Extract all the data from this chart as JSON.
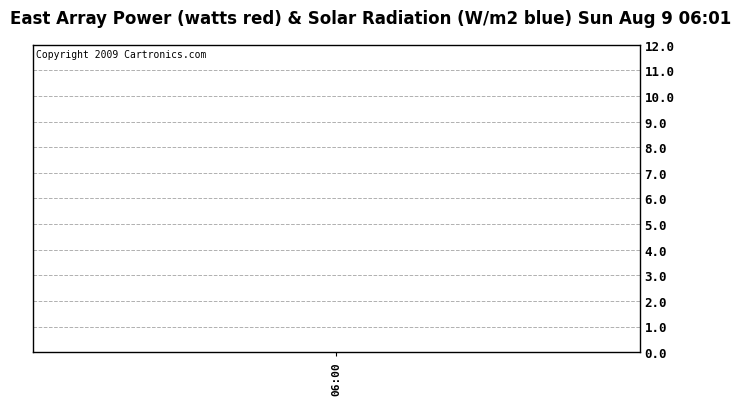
{
  "title": "East Array Power (watts red) & Solar Radiation (W/m2 blue) Sun Aug 9 06:01",
  "copyright_text": "Copyright 2009 Cartronics.com",
  "xlim": [
    0,
    1
  ],
  "ylim": [
    0.0,
    12.0
  ],
  "yticks": [
    0.0,
    1.0,
    2.0,
    3.0,
    4.0,
    5.0,
    6.0,
    7.0,
    8.0,
    9.0,
    10.0,
    11.0,
    12.0
  ],
  "ytick_labels": [
    "0.0",
    "1.0",
    "2.0",
    "3.0",
    "4.0",
    "5.0",
    "6.0",
    "7.0",
    "8.0",
    "9.0",
    "10.0",
    "11.0",
    "12.0"
  ],
  "xtick_labels": [
    "06:00"
  ],
  "xtick_positions": [
    0.5
  ],
  "grid_color": "#b0b0b0",
  "background_color": "#ffffff",
  "plot_bg_color": "#ffffff",
  "title_fontsize": 12,
  "copyright_fontsize": 7,
  "ytick_fontsize": 9,
  "xtick_fontsize": 8,
  "xlabel_rotation": 90
}
